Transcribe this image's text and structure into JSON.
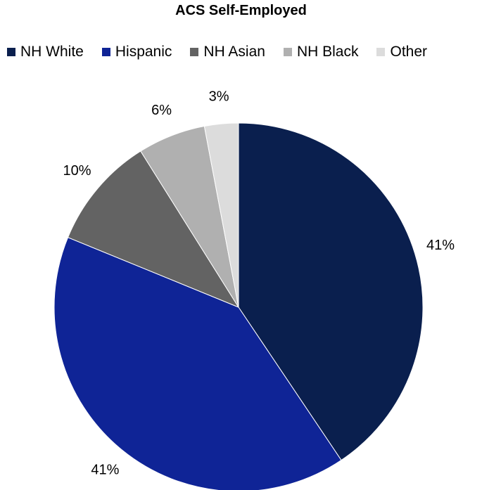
{
  "chart_data": {
    "type": "pie",
    "title": "ACS Self-Employed",
    "legend_position": "top",
    "slices": [
      {
        "label": "NH White",
        "value": 41,
        "display": "41%",
        "color": "#0a1f4e"
      },
      {
        "label": "Hispanic",
        "value": 41,
        "display": "41%",
        "color": "#0f2496"
      },
      {
        "label": "NH Asian",
        "value": 10,
        "display": "10%",
        "color": "#636363"
      },
      {
        "label": "NH Black",
        "value": 6,
        "display": "6%",
        "color": "#b0b0b0"
      },
      {
        "label": "Other",
        "value": 3,
        "display": "3%",
        "color": "#dcdcdc"
      }
    ]
  }
}
